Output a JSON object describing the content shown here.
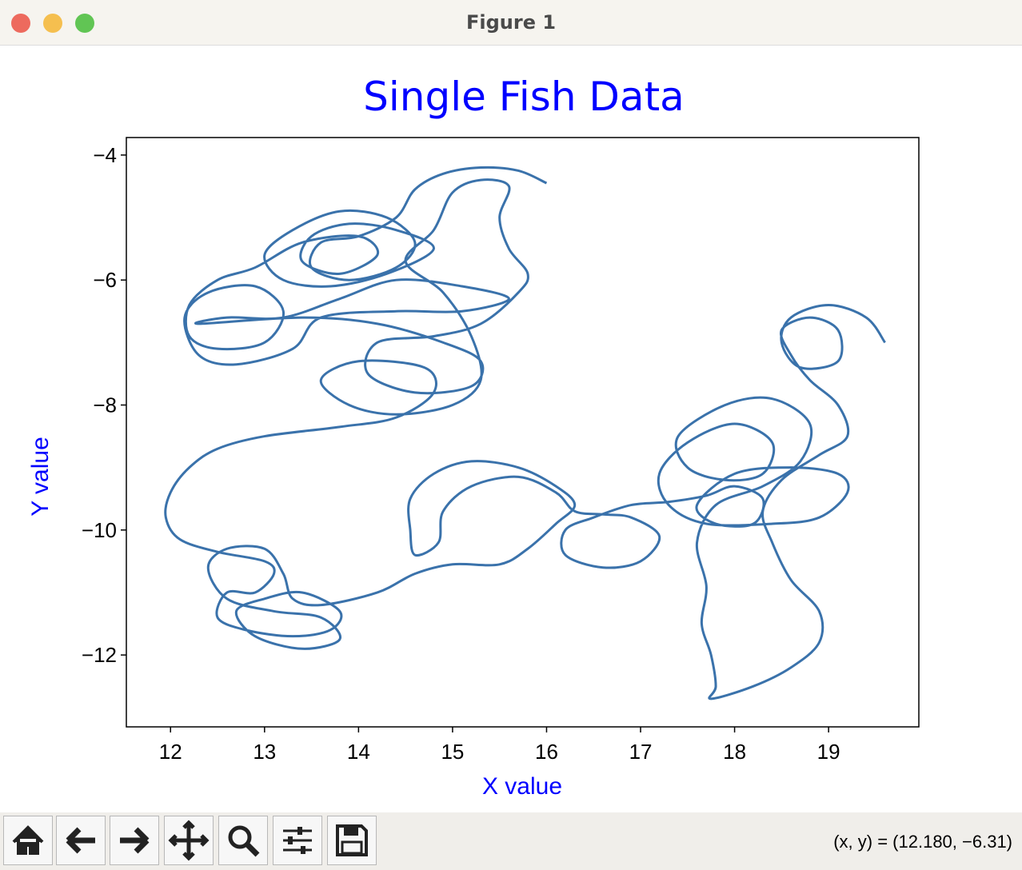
{
  "window": {
    "title": "Figure 1",
    "status": "(x, y) = (12.180, −6.31)"
  },
  "chart_data": {
    "type": "line",
    "title": "Single Fish Data",
    "x_label": "X value",
    "y_label": "Y value",
    "label_color": "#0000ff",
    "x": [
      16.0,
      15.7,
      15.3,
      14.9,
      14.6,
      14.4,
      14.0,
      13.6,
      13.5,
      13.9,
      14.4,
      14.6,
      14.3,
      13.8,
      13.3,
      13.0,
      13.2,
      13.7,
      14.3,
      14.8,
      14.4,
      13.9,
      13.5,
      13.4,
      13.8,
      14.2,
      14.0,
      13.4,
      12.9,
      12.5,
      12.2,
      12.2,
      12.5,
      13.0,
      13.2,
      12.9,
      12.4,
      12.15,
      12.3,
      12.7,
      13.3,
      13.6,
      14.4,
      15.1,
      15.6,
      15.1,
      14.4,
      13.8,
      13.2,
      12.6,
      12.3,
      13.4,
      14.2,
      14.9,
      15.3,
      15.2,
      14.6,
      14.1,
      14.2,
      14.8,
      15.3,
      15.7,
      15.8,
      15.6,
      15.5,
      15.6,
      15.3,
      15.0,
      14.8,
      14.5,
      14.9,
      15.2,
      15.3,
      15.0,
      14.4,
      13.9,
      13.6,
      14.0,
      14.7,
      14.8,
      14.4,
      13.8,
      13.0,
      12.5,
      12.2,
      12.0,
      11.95,
      12.1,
      12.5,
      13.0,
      13.1,
      12.9,
      12.6,
      12.5,
      12.8,
      13.3,
      13.7,
      13.8,
      13.4,
      13.0,
      12.7,
      12.9,
      13.4,
      13.8,
      13.6,
      13.1,
      12.6,
      12.4,
      12.6,
      13.0,
      13.2,
      13.3,
      13.6,
      14.2,
      14.6,
      15.0,
      15.5,
      15.8,
      16.1,
      16.3,
      16.1,
      15.7,
      15.2,
      14.8,
      14.55,
      14.55,
      14.6,
      14.85,
      14.9,
      15.2,
      15.7,
      16.1,
      16.3,
      16.6,
      16.9,
      17.2,
      17.0,
      16.6,
      16.2,
      16.2,
      16.5,
      16.9,
      17.3,
      17.7,
      18.0,
      18.3,
      18.2,
      17.8,
      17.6,
      18.0,
      18.6,
      19.1,
      19.2,
      18.9,
      18.4,
      17.7,
      17.3,
      17.2,
      17.5,
      18.0,
      18.4,
      18.3,
      17.9,
      17.5,
      17.4,
      17.9,
      18.4,
      18.8,
      18.7,
      18.3,
      17.8,
      17.6,
      17.7,
      17.65,
      17.75,
      17.8,
      17.75,
      18.2,
      18.6,
      18.9,
      18.9,
      18.6,
      18.4,
      18.3,
      18.5,
      18.9,
      19.2,
      19.1,
      18.8,
      18.6,
      18.5,
      18.8,
      19.1,
      19.1,
      18.7,
      18.5,
      18.6,
      19.0,
      19.4,
      19.6
    ],
    "series": [
      {
        "color": "#3a72ab",
        "values": [
          -4.45,
          -4.25,
          -4.2,
          -4.3,
          -4.55,
          -5.0,
          -5.3,
          -5.4,
          -5.8,
          -6.0,
          -5.8,
          -5.4,
          -5.0,
          -4.9,
          -5.2,
          -5.6,
          -6.0,
          -6.1,
          -5.9,
          -5.5,
          -5.2,
          -5.1,
          -5.3,
          -5.7,
          -5.9,
          -5.6,
          -5.3,
          -5.4,
          -5.8,
          -6.0,
          -6.4,
          -6.9,
          -7.1,
          -7.0,
          -6.5,
          -6.1,
          -6.2,
          -6.6,
          -7.2,
          -7.35,
          -7.1,
          -6.6,
          -6.5,
          -6.5,
          -6.3,
          -6.1,
          -6.0,
          -6.3,
          -6.6,
          -6.6,
          -6.7,
          -6.6,
          -6.7,
          -7.0,
          -7.3,
          -7.7,
          -7.8,
          -7.5,
          -7.0,
          -6.9,
          -6.7,
          -6.2,
          -5.9,
          -5.5,
          -5.0,
          -4.5,
          -4.4,
          -4.6,
          -5.2,
          -5.7,
          -6.2,
          -6.9,
          -7.6,
          -8.0,
          -8.15,
          -8.0,
          -7.6,
          -7.3,
          -7.4,
          -7.8,
          -8.2,
          -8.35,
          -8.5,
          -8.7,
          -9.0,
          -9.4,
          -9.8,
          -10.15,
          -10.35,
          -10.5,
          -10.7,
          -11.0,
          -11.0,
          -11.4,
          -11.6,
          -11.7,
          -11.6,
          -11.3,
          -11.0,
          -11.1,
          -11.3,
          -11.7,
          -11.9,
          -11.75,
          -11.4,
          -11.3,
          -11.1,
          -10.6,
          -10.3,
          -10.3,
          -10.7,
          -11.1,
          -11.2,
          -11.0,
          -10.7,
          -10.55,
          -10.55,
          -10.3,
          -9.9,
          -9.6,
          -9.3,
          -9.0,
          -8.9,
          -9.1,
          -9.5,
          -10.0,
          -10.4,
          -10.2,
          -9.7,
          -9.3,
          -9.15,
          -9.4,
          -9.7,
          -9.75,
          -9.8,
          -10.1,
          -10.5,
          -10.6,
          -10.4,
          -10.0,
          -9.8,
          -9.6,
          -9.55,
          -9.45,
          -9.3,
          -9.5,
          -9.9,
          -9.9,
          -9.6,
          -9.1,
          -9.0,
          -9.1,
          -9.4,
          -9.8,
          -9.9,
          -9.9,
          -9.6,
          -9.1,
          -8.6,
          -8.3,
          -8.6,
          -9.1,
          -9.2,
          -9.0,
          -8.5,
          -8.0,
          -7.9,
          -8.3,
          -8.9,
          -9.3,
          -9.6,
          -10.2,
          -10.9,
          -11.5,
          -12.0,
          -12.5,
          -12.7,
          -12.5,
          -12.2,
          -11.8,
          -11.3,
          -10.8,
          -10.2,
          -9.7,
          -9.2,
          -8.8,
          -8.5,
          -8.0,
          -7.6,
          -7.2,
          -6.8,
          -6.6,
          -6.8,
          -7.3,
          -7.4,
          -7.0,
          -6.6,
          -6.4,
          -6.6,
          -7.0
        ]
      }
    ],
    "xlim": [
      11.53,
      19.96
    ],
    "ylim": [
      -13.15,
      -3.72
    ],
    "xticks": [
      12,
      13,
      14,
      15,
      16,
      17,
      18,
      19
    ],
    "yticks": [
      {
        "value": -4,
        "label": "−4"
      },
      {
        "value": -6,
        "label": "−6"
      },
      {
        "value": -8,
        "label": "−8"
      },
      {
        "value": -10,
        "label": "−10"
      },
      {
        "value": -12,
        "label": "−12"
      }
    ],
    "grid": false
  }
}
